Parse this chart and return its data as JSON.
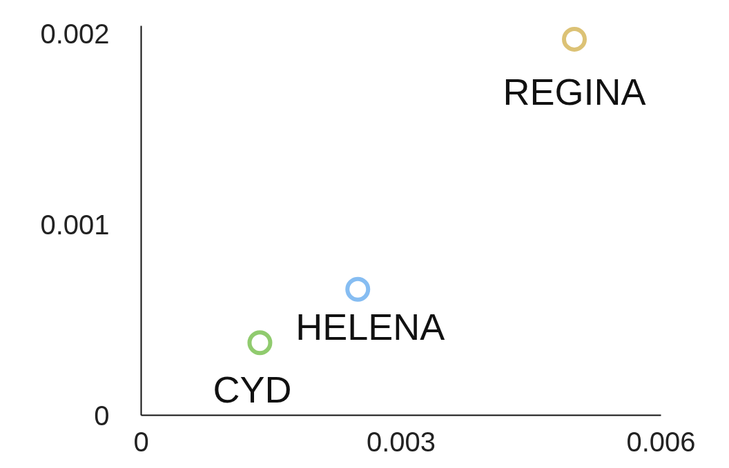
{
  "chart_data": {
    "type": "scatter",
    "xlim": [
      0,
      0.006
    ],
    "ylim": [
      0,
      0.00204
    ],
    "xticks": [
      0,
      0.003,
      0.006
    ],
    "yticks": [
      0,
      0.001,
      0.002
    ],
    "grid": false,
    "legend": false,
    "marker": "circle",
    "series": [
      {
        "name": "REGINA",
        "color": "#dcc275",
        "x": [
          0.005
        ],
        "values": [
          0.00197
        ]
      },
      {
        "name": "HELENA",
        "color": "#86bdf2",
        "x": [
          0.0025
        ],
        "values": [
          0.00066
        ]
      },
      {
        "name": "CYD",
        "color": "#90cb6e",
        "x": [
          0.00137
        ],
        "values": [
          0.00038
        ]
      }
    ]
  }
}
